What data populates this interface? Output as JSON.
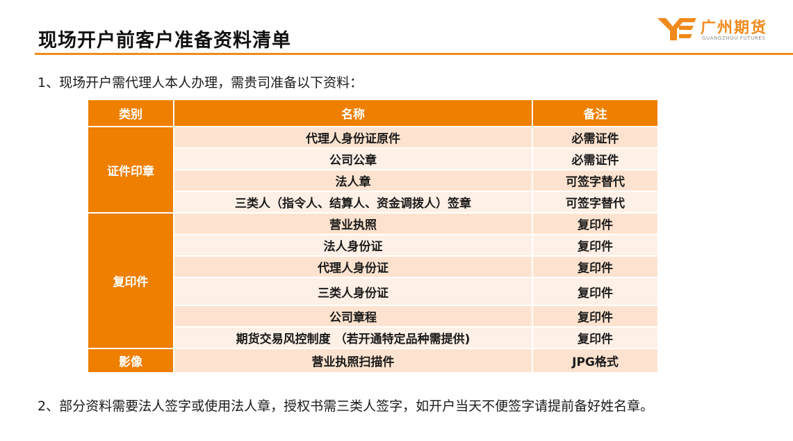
{
  "page": {
    "title": "现场开户前客户准备资料清单",
    "accent_color": "#ee7f00"
  },
  "logo": {
    "icon": "guangzhou-futures-logo-icon",
    "name_cn": "广州期货",
    "name_en": "GUANGZHOU FUTURES"
  },
  "intro": "1、现场开户需代理人本人办理，需贵司准备以下资料：",
  "table": {
    "headers": [
      "类别",
      "名称",
      "备注"
    ],
    "groups": [
      {
        "category": "证件印章",
        "rows": [
          {
            "name": "代理人身份证原件",
            "note": "必需证件"
          },
          {
            "name": "公司公章",
            "note": "必需证件"
          },
          {
            "name": "法人章",
            "note": "可签字替代"
          },
          {
            "name": "三类人（指令人、结算人、资金调拨人）签章",
            "note": "可签字替代"
          }
        ]
      },
      {
        "category": "复印件",
        "rows": [
          {
            "name": "营业执照",
            "note": "复印件"
          },
          {
            "name": "法人身份证",
            "note": "复印件"
          },
          {
            "name": "代理人身份证",
            "note": "复印件"
          },
          {
            "name": "三类人身份证",
            "note": "复印件"
          },
          {
            "name": "公司章程",
            "note": "复印件"
          },
          {
            "name": "期货交易风控制度 （若开通特定品种需提供)",
            "note": "复印件"
          }
        ]
      },
      {
        "category": "影像",
        "rows": [
          {
            "name": "营业执照扫描件",
            "note": "JPG格式"
          }
        ]
      }
    ]
  },
  "footnote": "2、部分资料需要法人签字或使用法人章，授权书需三类人签字，如开户当天不便签字请提前备好姓名章。"
}
